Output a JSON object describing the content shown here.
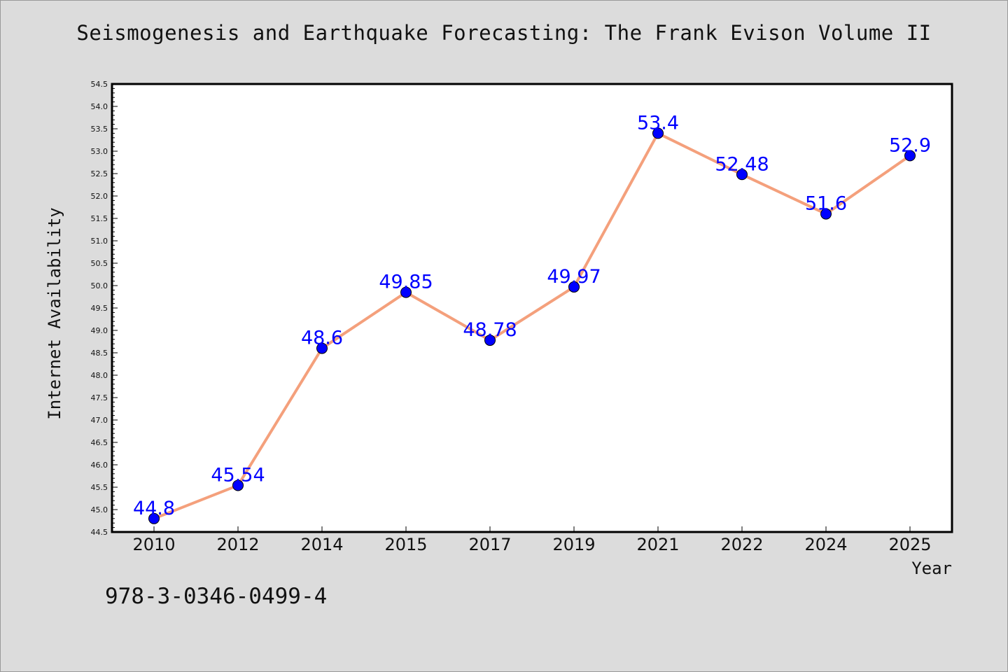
{
  "title": "Seismogenesis and Earthquake Forecasting: The Frank Evison Volume II",
  "footer_text": "978-3-0346-0499-4",
  "colors": {
    "background": "#dcdcdc",
    "plot_background": "#ffffff",
    "line": "#f4a07c",
    "marker": "#0000ff",
    "data_label": "#0000ff"
  },
  "chart_data": {
    "type": "line",
    "xlabel": "Year",
    "ylabel": "Internet Availability",
    "categories": [
      "2010",
      "2012",
      "2014",
      "2015",
      "2017",
      "2019",
      "2021",
      "2022",
      "2024",
      "2025"
    ],
    "values": [
      44.8,
      45.54,
      48.6,
      49.85,
      48.78,
      49.97,
      53.4,
      52.48,
      51.6,
      52.9
    ],
    "data_labels": [
      "44.8",
      "45.54",
      "48.6",
      "49.85",
      "48.78",
      "49.97",
      "53.4",
      "52.48",
      "51.6",
      "52.9"
    ],
    "ylim": [
      44.5,
      54.5
    ],
    "yticks": [
      "44.5",
      "45.0",
      "45.5",
      "46.0",
      "46.5",
      "47.0",
      "47.5",
      "48.0",
      "48.5",
      "49.0",
      "49.5",
      "50.0",
      "50.5",
      "51.0",
      "51.5",
      "52.0",
      "52.5",
      "53.0",
      "53.5",
      "54.0",
      "54.5"
    ],
    "grid": false,
    "legend": "none"
  }
}
